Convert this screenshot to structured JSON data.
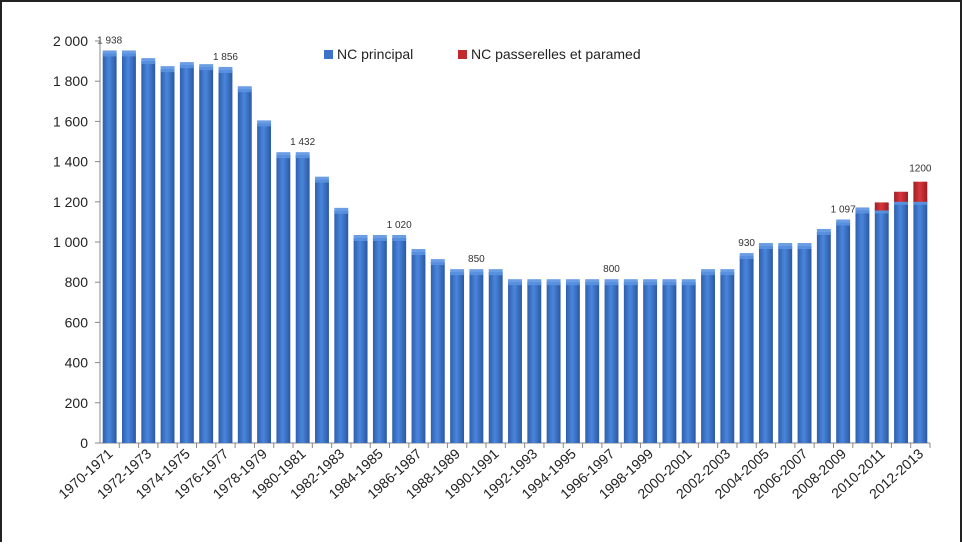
{
  "chart_data": {
    "type": "bar",
    "stacked": true,
    "categories": [
      "1970-1971",
      "1971-1972",
      "1972-1973",
      "1973-1974",
      "1974-1975",
      "1975-1976",
      "1976-1977",
      "1977-1978",
      "1978-1979",
      "1979-1980",
      "1980-1981",
      "1981-1982",
      "1982-1983",
      "1983-1984",
      "1984-1985",
      "1985-1986",
      "1986-1987",
      "1987-1988",
      "1988-1989",
      "1989-1990",
      "1990-1991",
      "1991-1992",
      "1992-1993",
      "1993-1994",
      "1994-1995",
      "1995-1996",
      "1996-1997",
      "1997-1998",
      "1998-1999",
      "1999-2000",
      "2000-2001",
      "2001-2002",
      "2002-2003",
      "2003-2004",
      "2004-2005",
      "2005-2006",
      "2006-2007",
      "2007-2008",
      "2008-2009",
      "2009-2010",
      "2010-2011",
      "2011-2012",
      "2012-2013"
    ],
    "tick_labels": [
      "1970-1971",
      "1972-1973",
      "1974-1975",
      "1976-1977",
      "1978-1979",
      "1980-1981",
      "1982-1983",
      "1984-1985",
      "1986-1987",
      "1988-1989",
      "1990-1991",
      "1992-1993",
      "1994-1995",
      "1996-1997",
      "1998-1999",
      "2000-2001",
      "2002-2003",
      "2004-2005",
      "2006-2007",
      "2008-2009",
      "2010-2011",
      "2012-2013"
    ],
    "series": [
      {
        "name": "NC  principal",
        "color": "#3a73c8",
        "values": [
          1938,
          1938,
          1900,
          1860,
          1880,
          1870,
          1856,
          1760,
          1590,
          1432,
          1432,
          1310,
          1155,
          1020,
          1020,
          1020,
          950,
          900,
          850,
          850,
          850,
          800,
          800,
          800,
          800,
          800,
          800,
          800,
          800,
          800,
          800,
          850,
          850,
          930,
          980,
          980,
          980,
          1050,
          1097,
          1157,
          1157,
          1200,
          1200
        ]
      },
      {
        "name": "NC passerelles et paramed",
        "color": "#c0282d",
        "values": [
          0,
          0,
          0,
          0,
          0,
          0,
          0,
          0,
          0,
          0,
          0,
          0,
          0,
          0,
          0,
          0,
          0,
          0,
          0,
          0,
          0,
          0,
          0,
          0,
          0,
          0,
          0,
          0,
          0,
          0,
          0,
          0,
          0,
          0,
          0,
          0,
          0,
          0,
          0,
          0,
          40,
          50,
          100
        ]
      }
    ],
    "data_labels": [
      {
        "index": 0,
        "text": "1 938"
      },
      {
        "index": 6,
        "text": "1 856"
      },
      {
        "index": 10,
        "text": "1 432"
      },
      {
        "index": 15,
        "text": "1 020"
      },
      {
        "index": 19,
        "text": "850"
      },
      {
        "index": 26,
        "text": "800"
      },
      {
        "index": 33,
        "text": "930"
      },
      {
        "index": 38,
        "text": "1 097"
      },
      {
        "index": 42,
        "text": "1200"
      }
    ],
    "y_ticks": [
      "0",
      "200",
      "400",
      "600",
      "800",
      "1 000",
      "1 200",
      "1 400",
      "1 600",
      "1 800",
      "2 000"
    ],
    "ylim": [
      0,
      2000
    ],
    "legend_position": "top-center",
    "grid": false
  }
}
